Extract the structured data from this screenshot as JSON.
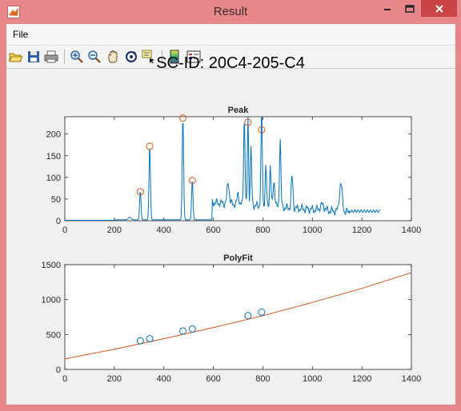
{
  "window": {
    "title": "Result"
  },
  "menu": {
    "file": "File"
  },
  "toolbar": {
    "icons": [
      "open-icon",
      "save-icon",
      "print-icon",
      "zoom-in-icon",
      "zoom-out-icon",
      "pan-icon",
      "rotate-icon",
      "data-cursor-icon",
      "colorbar-icon",
      "legend-icon"
    ]
  },
  "figure": {
    "suptitle": "SC-ID: 20C4-205-C4"
  },
  "colors": {
    "line": "#0072bd",
    "marker": "#d95319",
    "fit": "#d95319",
    "polymarker": "#0072bd"
  },
  "chart_data": [
    {
      "type": "line",
      "title": "Peak",
      "xlim": [
        0,
        1400
      ],
      "ylim": [
        0,
        240
      ],
      "xticks": [
        0,
        200,
        400,
        600,
        800,
        1000,
        1200,
        1400
      ],
      "yticks": [
        0,
        50,
        100,
        150,
        200
      ],
      "peaks_x": [
        305,
        343,
        477,
        515,
        740,
        795
      ],
      "peaks_y": [
        67,
        172,
        237,
        93,
        227,
        210
      ]
    },
    {
      "type": "scatter",
      "title": "PolyFit",
      "xlim": [
        0,
        1400
      ],
      "ylim": [
        0,
        1500
      ],
      "xticks": [
        0,
        200,
        400,
        600,
        800,
        1000,
        1200,
        1400
      ],
      "yticks": [
        0,
        500,
        1000,
        1500
      ],
      "points_x": [
        305,
        343,
        477,
        515,
        740,
        795
      ],
      "points_y": [
        410,
        440,
        550,
        580,
        770,
        820
      ],
      "fit_x": [
        0,
        200,
        400,
        600,
        800,
        1000,
        1200,
        1400
      ],
      "fit_y": [
        150,
        290,
        440,
        600,
        770,
        960,
        1160,
        1385
      ]
    }
  ]
}
